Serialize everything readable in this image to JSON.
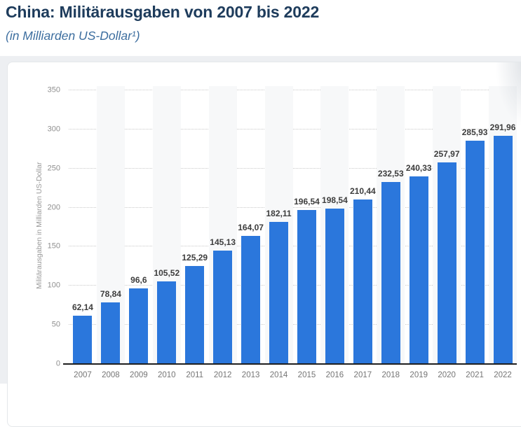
{
  "page": {
    "title": "China: Militärausgaben von 2007 bis 2022",
    "subtitle": "(in Milliarden US-Dollar¹)"
  },
  "chart_data": {
    "type": "bar",
    "title": "China: Militärausgaben von 2007 bis 2022",
    "subtitle": "(in Milliarden US-Dollar¹)",
    "categories": [
      "2007",
      "2008",
      "2009",
      "2010",
      "2011",
      "2012",
      "2013",
      "2014",
      "2015",
      "2016",
      "2017",
      "2018",
      "2019",
      "2020",
      "2021",
      "2022"
    ],
    "values": [
      62.14,
      78.84,
      96.6,
      105.52,
      125.29,
      145.13,
      164.07,
      182.11,
      196.54,
      198.54,
      210.44,
      232.53,
      240.33,
      257.97,
      285.93,
      291.96
    ],
    "value_labels": [
      "62,14",
      "78,84",
      "96,6",
      "105,52",
      "125,29",
      "145,13",
      "164,07",
      "182,11",
      "196,54",
      "198,54",
      "210,44",
      "232,53",
      "240,33",
      "257,97",
      "285,93",
      "291,96"
    ],
    "xlabel": "",
    "ylabel": "Militärausgaben in Milliarden US-Dollar",
    "ylim": [
      0,
      350
    ],
    "yticks": [
      0,
      50,
      100,
      150,
      200,
      250,
      300,
      350
    ],
    "grid": "horizontal-dotted",
    "legend": "none",
    "bar_color": "#2b77dc",
    "band_color": "#f7f8f9",
    "title_color": "#1e3c5c",
    "subtitle_color": "#3d6e9f"
  }
}
